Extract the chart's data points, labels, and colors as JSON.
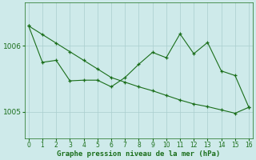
{
  "xlabel": "Graphe pression niveau de la mer (hPa)",
  "background_color": "#ceeaea",
  "grid_color": "#aacece",
  "line_color": "#1a6e1a",
  "xlim": [
    -0.3,
    16.3
  ],
  "ylim": [
    1004.6,
    1006.65
  ],
  "yticks": [
    1005,
    1006
  ],
  "xticks": [
    0,
    1,
    2,
    3,
    4,
    5,
    6,
    7,
    8,
    9,
    10,
    11,
    12,
    13,
    14,
    15,
    16
  ],
  "series1_x": [
    0,
    1,
    2,
    3,
    4,
    5,
    6,
    7,
    8,
    9,
    10,
    11,
    12,
    13,
    14,
    15,
    16
  ],
  "series1_y": [
    1006.3,
    1005.75,
    1005.78,
    1005.47,
    1005.48,
    1005.48,
    1005.38,
    1005.52,
    1005.72,
    1005.9,
    1005.82,
    1006.18,
    1005.88,
    1006.05,
    1005.62,
    1005.55,
    1005.07
  ],
  "series2_x": [
    0,
    1,
    2,
    3,
    4,
    5,
    6,
    7,
    8,
    9,
    10,
    11,
    12,
    13,
    14,
    15,
    16
  ],
  "series2_y": [
    1006.3,
    1006.17,
    1006.04,
    1005.91,
    1005.78,
    1005.65,
    1005.52,
    1005.45,
    1005.38,
    1005.32,
    1005.25,
    1005.18,
    1005.12,
    1005.08,
    1005.03,
    1004.98,
    1005.07
  ],
  "tick_fontsize": 5.5,
  "xlabel_fontsize": 6.5
}
